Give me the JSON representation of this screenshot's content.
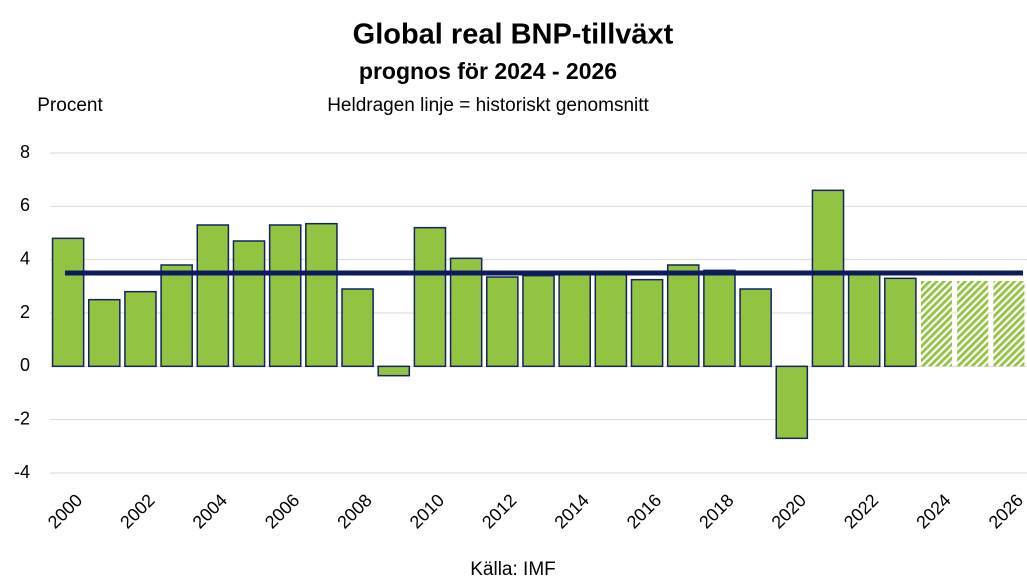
{
  "chart_data": {
    "type": "bar",
    "title": "Global real BNP-tillväxt",
    "subtitle": "prognos för 2024 - 2026",
    "y_label": "Procent",
    "annotation": "Heldragen linje = historiskt genomsnitt",
    "source": "Källa: IMF",
    "categories": [
      "2000",
      null,
      "2002",
      null,
      "2004",
      null,
      "2006",
      null,
      "2008",
      null,
      "2010",
      null,
      "2012",
      null,
      "2014",
      null,
      "2016",
      null,
      "2018",
      null,
      "2020",
      null,
      "2022",
      null,
      "2024",
      null,
      "2026"
    ],
    "values": [
      4.8,
      2.5,
      2.8,
      3.8,
      5.3,
      4.7,
      5.3,
      5.35,
      2.9,
      -0.35,
      5.2,
      4.05,
      3.35,
      3.4,
      3.5,
      3.45,
      3.25,
      3.8,
      3.6,
      2.9,
      -2.7,
      6.6,
      3.5,
      3.3,
      3.2,
      3.2,
      3.2
    ],
    "hatched": [
      false,
      false,
      false,
      false,
      false,
      false,
      false,
      false,
      false,
      false,
      false,
      false,
      false,
      false,
      false,
      false,
      false,
      false,
      false,
      false,
      false,
      false,
      false,
      false,
      true,
      true,
      true
    ],
    "color": "#92c441",
    "edge_color": "#14235e",
    "reference_line": {
      "value": 3.5,
      "color": "#0d1a5e"
    },
    "ylim": [
      -4,
      8
    ],
    "yticks": [
      -4,
      -2,
      0,
      2,
      4,
      6,
      8
    ],
    "grid": true
  }
}
